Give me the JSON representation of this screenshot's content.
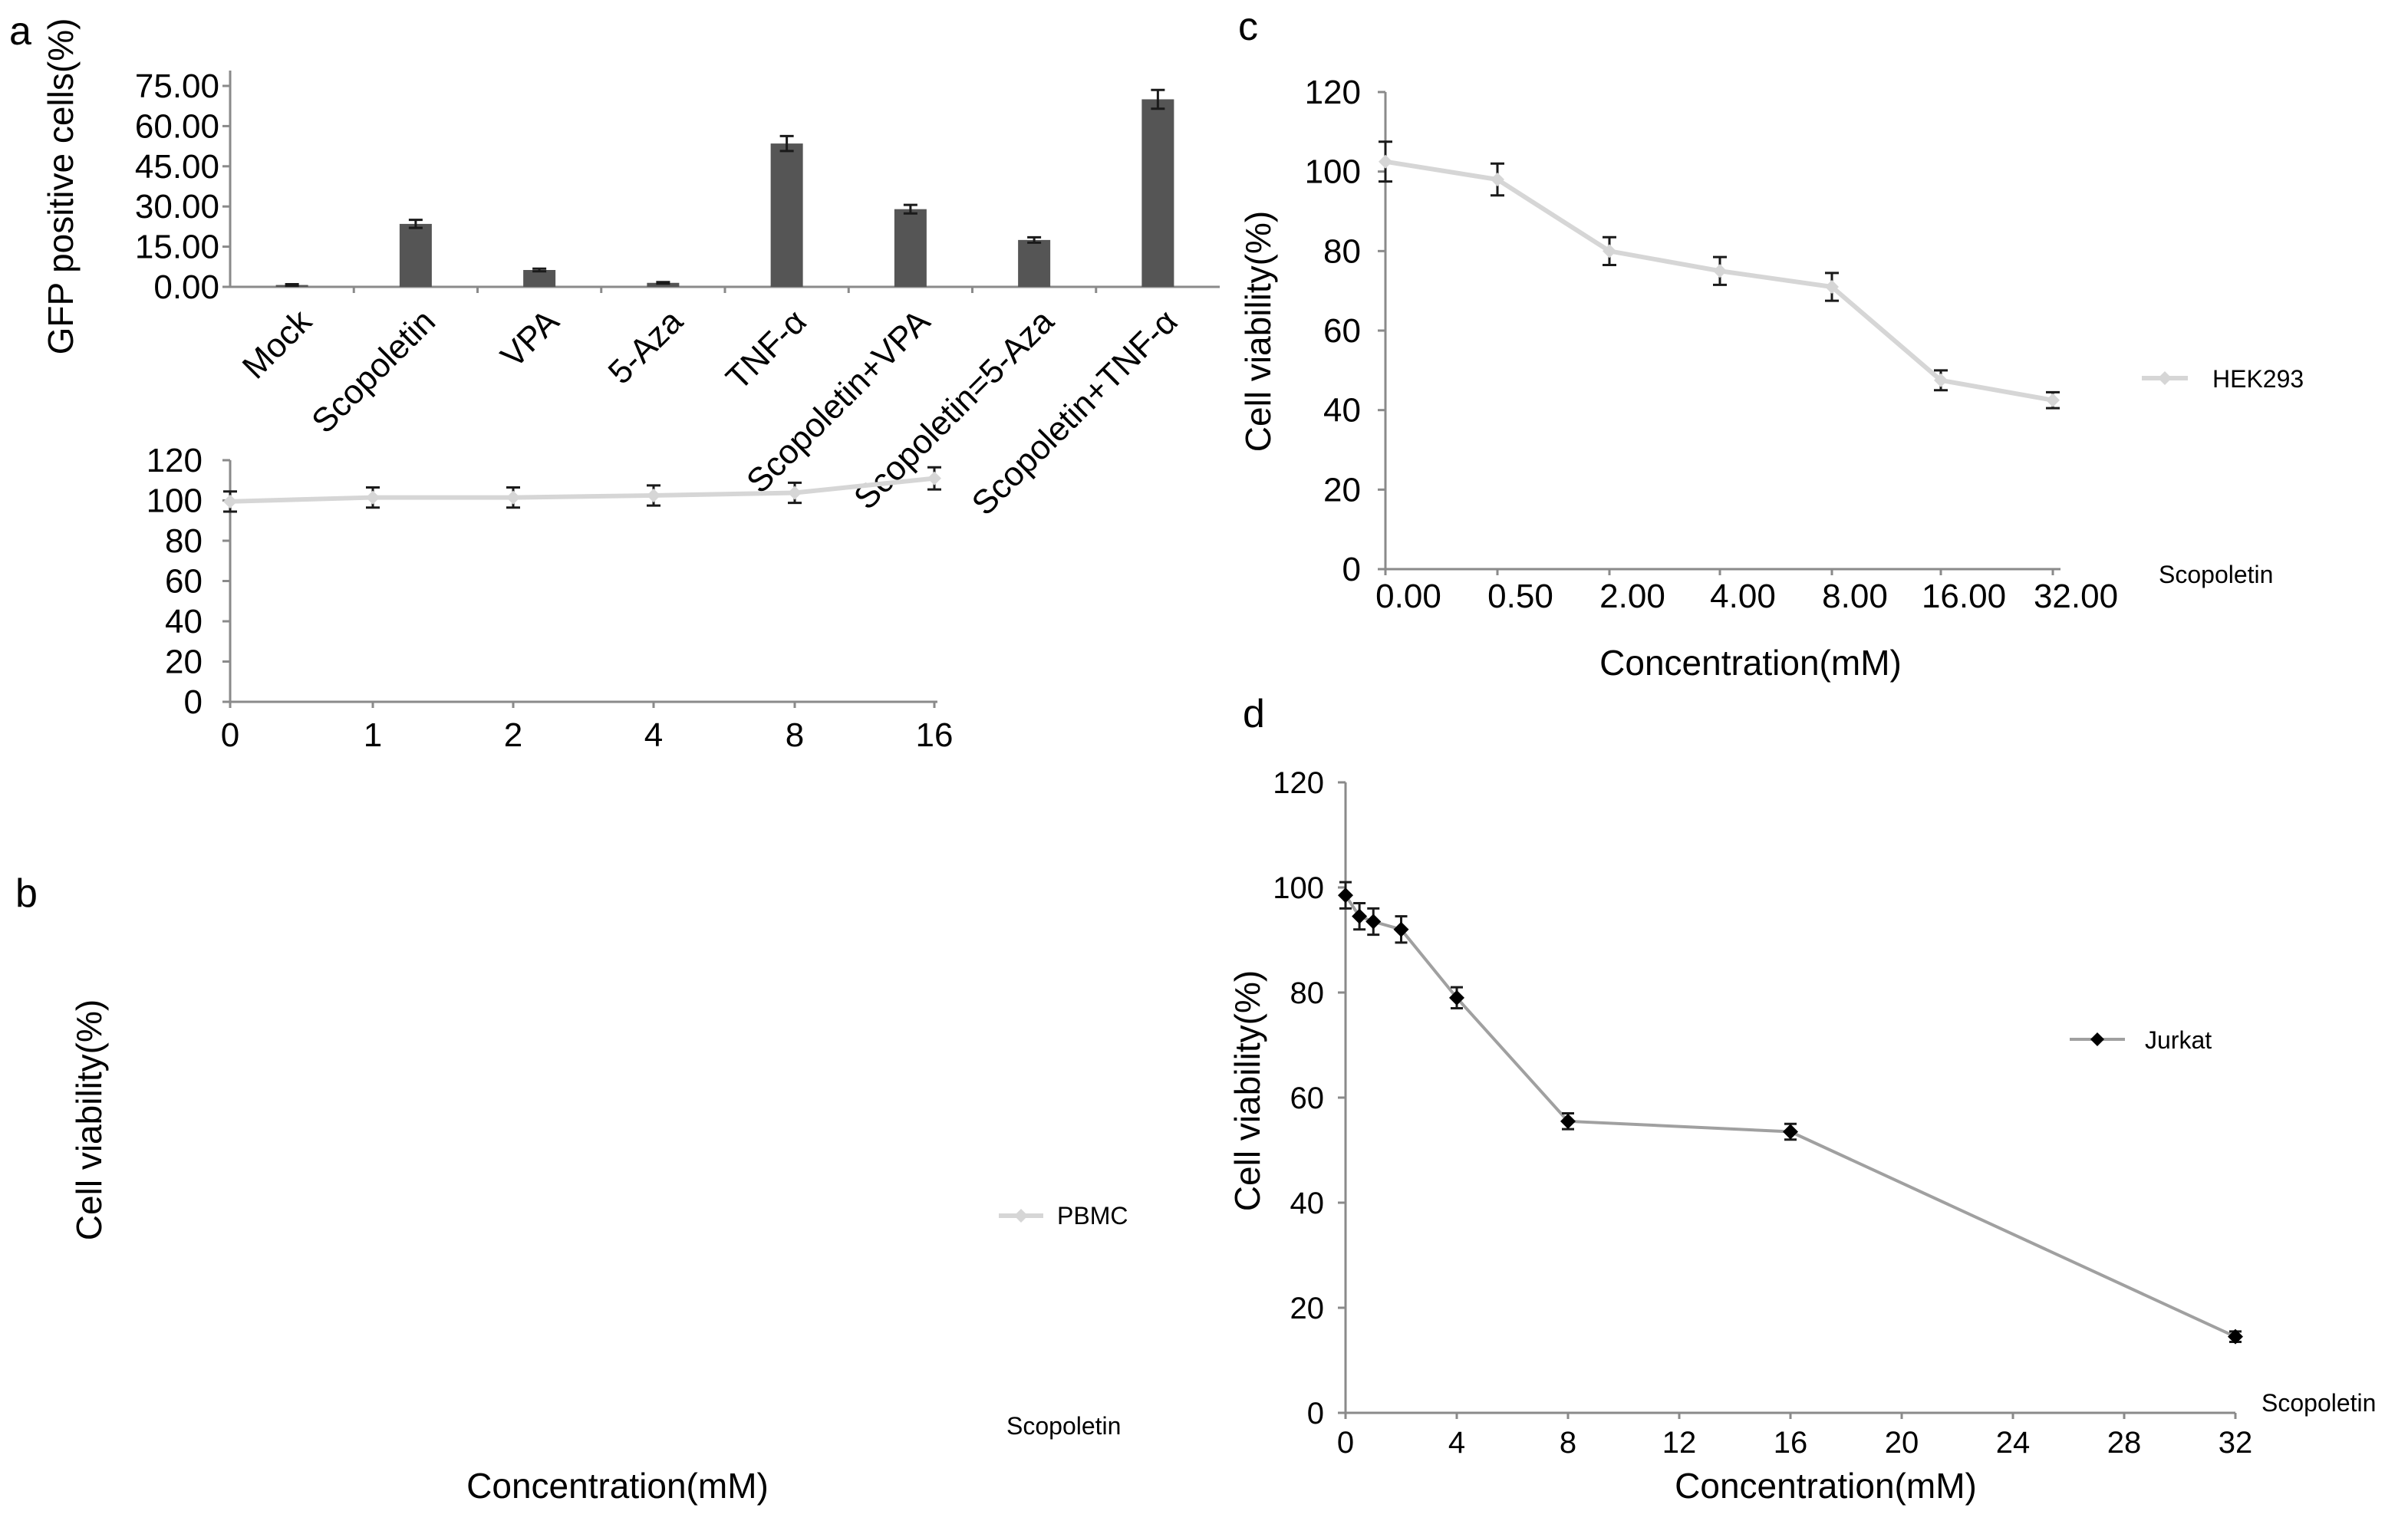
{
  "chart_data": [
    {
      "panel": "a",
      "type": "bar",
      "ylabel": "GFP positive cells(%)",
      "xlabel": "",
      "yticks": [
        "75.00",
        "60.00",
        "45.00",
        "30.00",
        "15.00",
        "0.00"
      ],
      "ylim": [
        0,
        75
      ],
      "categories": [
        "Mock",
        "Scopoletin",
        "VPA",
        "5-Aza",
        "TNF-α",
        "Scopoletin+VPA",
        "Scopoletin=5-Aza",
        "Scopoletin+TNF-α"
      ],
      "values": [
        0.7,
        23.5,
        6.3,
        1.5,
        53.5,
        29.0,
        17.5,
        70.0
      ],
      "errors": [
        0.3,
        1.5,
        0.5,
        0.3,
        2.8,
        1.6,
        1.0,
        3.5
      ],
      "bar_color": "#555555"
    },
    {
      "panel": "b",
      "type": "line",
      "ylabel": "Cell viability(%)",
      "xlabel": "Concentration(mM)",
      "x_side_label": "Scopoletin",
      "x": [
        "0",
        "1",
        "2",
        "4",
        "8",
        "16"
      ],
      "yticks": [
        "120",
        "100",
        "80",
        "60",
        "40",
        "20",
        "0"
      ],
      "ylim": [
        0,
        120
      ],
      "series": [
        {
          "name": "PBMC",
          "values": [
            99.5,
            101.5,
            101.5,
            102.5,
            103.8,
            111.0
          ],
          "errors": [
            5,
            5,
            5,
            5,
            5,
            5.5
          ],
          "color": "#d6d6d6",
          "marker": "diamond"
        }
      ]
    },
    {
      "panel": "c",
      "type": "line",
      "ylabel": "Cell viability(%)",
      "xlabel": "Concentration(mM)",
      "x_side_label": "Scopoletin",
      "x": [
        "0.00",
        "0.50",
        "2.00",
        "4.00",
        "8.00",
        "16.00",
        "32.00"
      ],
      "yticks": [
        "120",
        "100",
        "80",
        "60",
        "40",
        "20",
        "0"
      ],
      "ylim": [
        0,
        120
      ],
      "series": [
        {
          "name": "HEK293",
          "values": [
            102.5,
            98.0,
            80.0,
            75.0,
            71.0,
            47.5,
            42.5
          ],
          "errors": [
            5,
            4,
            3.5,
            3.5,
            3.5,
            2.5,
            2
          ],
          "color": "#d6d6d6",
          "marker": "diamond"
        }
      ]
    },
    {
      "panel": "d",
      "type": "scatter",
      "ylabel": "Cell viability(%)",
      "xlabel": "Concentration(mM)",
      "x_side_label": "Scopoletin",
      "xticks": [
        "0",
        "4",
        "8",
        "12",
        "16",
        "20",
        "24",
        "28",
        "32"
      ],
      "yticks": [
        "120",
        "100",
        "80",
        "60",
        "40",
        "20",
        "0"
      ],
      "xlim": [
        0,
        32
      ],
      "ylim": [
        0,
        120
      ],
      "series": [
        {
          "name": "Jurkat",
          "x": [
            0,
            0.5,
            1,
            2,
            4,
            8,
            16,
            32
          ],
          "values": [
            98.5,
            94.5,
            93.5,
            92.0,
            79.0,
            55.5,
            53.5,
            14.5
          ],
          "errors": [
            2.5,
            2.5,
            2.5,
            2.5,
            2,
            1.5,
            1.5,
            1
          ],
          "color": "#000000",
          "line_color": "#a0a0a0",
          "marker": "diamond"
        }
      ]
    }
  ],
  "panel_letters": {
    "a": "a",
    "b": "b",
    "c": "c",
    "d": "d"
  }
}
